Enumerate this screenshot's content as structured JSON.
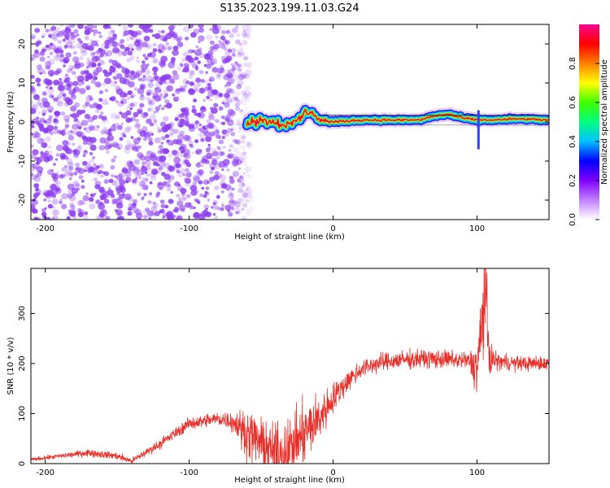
{
  "title": "S135.2023.199.11.03.G24",
  "colors": {
    "snr_line": "#e8302a",
    "noise": "#8c3cf0",
    "ridge_core": "#e8102a"
  },
  "chart_data": [
    {
      "type": "heatmap",
      "xlabel": "Height of straight line (km)",
      "ylabel": "Frequency (Hz)",
      "xlim": [
        -210,
        150
      ],
      "ylim": [
        -25,
        25
      ],
      "x_ticks": [
        -200,
        -100,
        0,
        100
      ],
      "y_ticks": [
        -20,
        -10,
        0,
        10,
        20
      ],
      "colorbar": {
        "label": "Normalized spectral amplitude",
        "range": [
          0,
          1
        ],
        "ticks": [
          "0.0",
          "0.2",
          "0.4",
          "0.6",
          "0.8"
        ],
        "colors": [
          "#ffffff",
          "#c080ff",
          "#8000ff",
          "#0000ff",
          "#00c0ff",
          "#00ff80",
          "#40ff00",
          "#ffff00",
          "#ff8000",
          "#ff0000",
          "#ff0090"
        ]
      },
      "ridge": {
        "x": [
          -60,
          -50,
          -40,
          -30,
          -20,
          -15,
          -10,
          0,
          20,
          40,
          60,
          70,
          80,
          90,
          100,
          110,
          130,
          150
        ],
        "y": [
          0,
          0.5,
          0,
          -1,
          2,
          3,
          0.5,
          0,
          0.5,
          0.5,
          0.5,
          1.5,
          2,
          1,
          0.5,
          0.5,
          0.8,
          0.5
        ]
      },
      "noise_region": [
        -210,
        -60
      ]
    },
    {
      "type": "line",
      "xlabel": "Height of straight line (km)",
      "ylabel": "SNR (10 * v/v)",
      "xlim": [
        -210,
        150
      ],
      "ylim": [
        0,
        390
      ],
      "x_ticks": [
        -200,
        -100,
        0,
        100
      ],
      "y_ticks": [
        0,
        100,
        200,
        300
      ],
      "envelope": {
        "x": [
          -210,
          -190,
          -170,
          -150,
          -140,
          -120,
          -100,
          -80,
          -70,
          -60,
          -50,
          -40,
          -30,
          -20,
          -10,
          0,
          10,
          20,
          30,
          40,
          60,
          80,
          95,
          100,
          104,
          106,
          108,
          112,
          130,
          150
        ],
        "y": [
          8,
          15,
          22,
          15,
          5,
          40,
          80,
          90,
          85,
          60,
          40,
          20,
          30,
          60,
          90,
          130,
          165,
          190,
          200,
          205,
          210,
          208,
          205,
          190,
          290,
          330,
          220,
          205,
          200,
          200
        ],
        "noise": [
          3,
          4,
          6,
          6,
          5,
          8,
          10,
          12,
          16,
          40,
          40,
          45,
          50,
          50,
          40,
          25,
          18,
          15,
          15,
          15,
          15,
          15,
          15,
          50,
          90,
          80,
          40,
          15,
          12,
          12
        ]
      }
    }
  ]
}
